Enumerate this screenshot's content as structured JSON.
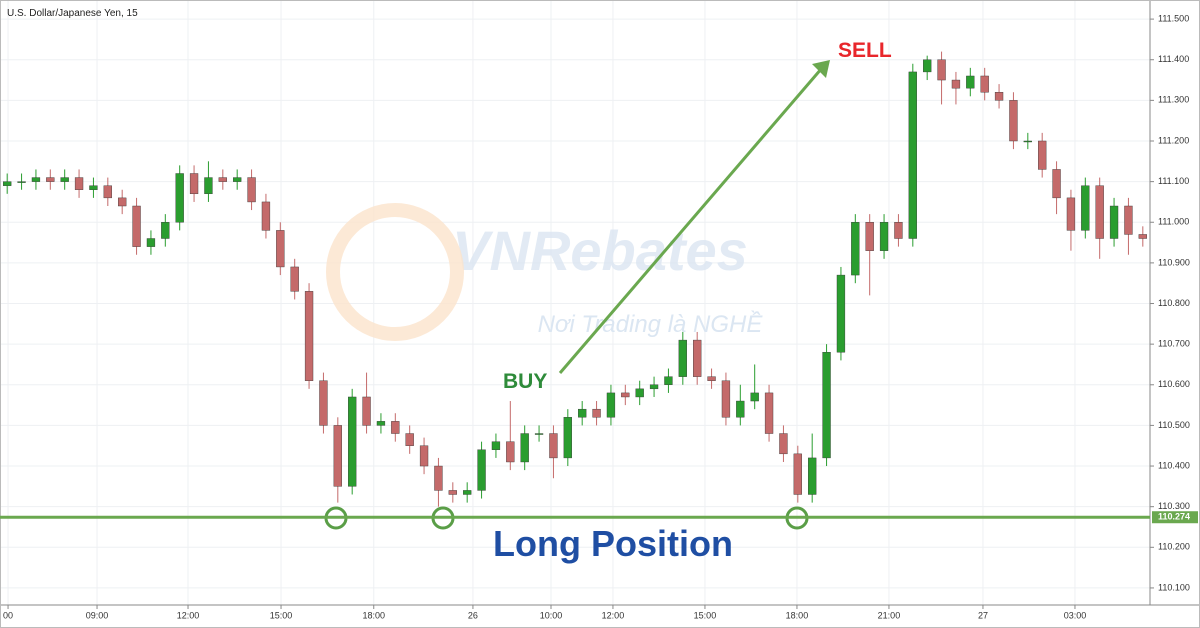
{
  "chart_data": {
    "type": "candlestick",
    "title": "U.S. Dollar/Japanese Yen, 15",
    "watermark": "VNRebates",
    "watermark_subtitle": "Nơi Trading là NGHỀ",
    "annotations": {
      "buy": "BUY",
      "sell": "SELL",
      "position": "Long Position"
    },
    "up_color": "#2a9d2f",
    "down_color": "#c46a6a",
    "grid": true,
    "xlim": [
      -0.5,
      79.5
    ],
    "xticks": [
      {
        "value": 0.06,
        "label": "00"
      },
      {
        "value": 6.25,
        "label": "09:00"
      },
      {
        "value": 12.58,
        "label": "12:00"
      },
      {
        "value": 19.05,
        "label": "15:00"
      },
      {
        "value": 25.5,
        "label": "18:00"
      },
      {
        "value": 32.4,
        "label": "26"
      },
      {
        "value": 37.83,
        "label": "10:00"
      },
      {
        "value": 42.14,
        "label": "12:00"
      },
      {
        "value": 48.54,
        "label": "15:00"
      },
      {
        "value": 54.94,
        "label": "18:00"
      },
      {
        "value": 61.34,
        "label": "21:00"
      },
      {
        "value": 67.88,
        "label": "27"
      },
      {
        "value": 74.28,
        "label": "03:00"
      }
    ],
    "ylim": [
      110.058,
      111.547
    ],
    "yticks": [
      {
        "value": 110.1,
        "label": "110.100"
      },
      {
        "value": 110.2,
        "label": "110.200"
      },
      {
        "value": 110.3,
        "label": "110.300"
      },
      {
        "value": 110.4,
        "label": "110.400"
      },
      {
        "value": 110.5,
        "label": "110.500"
      },
      {
        "value": 110.6,
        "label": "110.600"
      },
      {
        "value": 110.7,
        "label": "110.700"
      },
      {
        "value": 110.8,
        "label": "110.800"
      },
      {
        "value": 110.9,
        "label": "110.900"
      },
      {
        "value": 111.0,
        "label": "111.000"
      },
      {
        "value": 111.1,
        "label": "111.100"
      },
      {
        "value": 111.2,
        "label": "111.200"
      },
      {
        "value": 111.3,
        "label": "111.300"
      },
      {
        "value": 111.4,
        "label": "111.400"
      },
      {
        "value": 111.5,
        "label": "111.500"
      }
    ],
    "hline": {
      "value": 110.274,
      "label": "110.274",
      "color": "#6aa84f"
    },
    "open": [
      111.09,
      111.1,
      111.1,
      111.11,
      111.1,
      111.11,
      111.08,
      111.09,
      111.06,
      111.04,
      110.94,
      110.96,
      111.0,
      111.12,
      111.07,
      111.11,
      111.1,
      111.11,
      111.05,
      110.98,
      110.89,
      110.83,
      110.61,
      110.5,
      110.35,
      110.57,
      110.5,
      110.51,
      110.48,
      110.45,
      110.4,
      110.34,
      110.33,
      110.34,
      110.44,
      110.46,
      110.41,
      110.48,
      110.48,
      110.42,
      110.52,
      110.54,
      110.52,
      110.58,
      110.57,
      110.59,
      110.6,
      110.62,
      110.71,
      110.62,
      110.61,
      110.52,
      110.56,
      110.58,
      110.48,
      110.43,
      110.33,
      110.42,
      110.68,
      110.87,
      111.0,
      110.93,
      111.0,
      110.96,
      111.37,
      111.4,
      111.35,
      111.33,
      111.36,
      111.32,
      111.3,
      111.2,
      111.2,
      111.13,
      111.06,
      110.98,
      111.09,
      110.96,
      111.04,
      110.97
    ],
    "high": [
      111.12,
      111.12,
      111.13,
      111.13,
      111.13,
      111.13,
      111.11,
      111.11,
      111.08,
      111.06,
      110.98,
      111.02,
      111.14,
      111.14,
      111.15,
      111.13,
      111.13,
      111.13,
      111.07,
      111.0,
      110.91,
      110.85,
      110.63,
      110.52,
      110.59,
      110.63,
      110.53,
      110.53,
      110.5,
      110.47,
      110.42,
      110.36,
      110.36,
      110.46,
      110.48,
      110.56,
      110.5,
      110.5,
      110.5,
      110.54,
      110.56,
      110.56,
      110.6,
      110.6,
      110.61,
      110.62,
      110.64,
      110.73,
      110.73,
      110.64,
      110.63,
      110.6,
      110.65,
      110.6,
      110.5,
      110.45,
      110.48,
      110.7,
      110.89,
      111.02,
      111.02,
      111.02,
      111.02,
      111.39,
      111.41,
      111.42,
      111.37,
      111.38,
      111.38,
      111.34,
      111.32,
      111.22,
      111.22,
      111.15,
      111.08,
      111.11,
      111.11,
      111.06,
      111.06,
      110.99
    ],
    "low": [
      111.07,
      111.08,
      111.08,
      111.08,
      111.08,
      111.06,
      111.06,
      111.04,
      111.02,
      110.92,
      110.92,
      110.94,
      110.98,
      111.05,
      111.05,
      111.08,
      111.08,
      111.03,
      110.96,
      110.87,
      110.81,
      110.59,
      110.48,
      110.31,
      110.33,
      110.48,
      110.48,
      110.46,
      110.43,
      110.38,
      110.3,
      110.31,
      110.31,
      110.32,
      110.42,
      110.39,
      110.39,
      110.46,
      110.37,
      110.4,
      110.5,
      110.5,
      110.5,
      110.55,
      110.55,
      110.57,
      110.58,
      110.6,
      110.6,
      110.59,
      110.5,
      110.5,
      110.54,
      110.46,
      110.41,
      110.31,
      110.31,
      110.4,
      110.66,
      110.85,
      110.82,
      110.91,
      110.94,
      110.94,
      111.35,
      111.29,
      111.29,
      111.31,
      111.3,
      111.28,
      111.18,
      111.18,
      111.11,
      111.02,
      110.93,
      110.96,
      110.91,
      110.94,
      110.92,
      110.94
    ],
    "close": [
      111.1,
      111.1,
      111.11,
      111.1,
      111.11,
      111.08,
      111.09,
      111.06,
      111.04,
      110.94,
      110.96,
      111.0,
      111.12,
      111.07,
      111.11,
      111.1,
      111.11,
      111.05,
      110.98,
      110.89,
      110.83,
      110.61,
      110.5,
      110.35,
      110.57,
      110.5,
      110.51,
      110.48,
      110.45,
      110.4,
      110.34,
      110.33,
      110.34,
      110.44,
      110.46,
      110.41,
      110.48,
      110.48,
      110.42,
      110.52,
      110.54,
      110.52,
      110.58,
      110.57,
      110.59,
      110.6,
      110.62,
      110.71,
      110.62,
      110.61,
      110.52,
      110.56,
      110.58,
      110.48,
      110.43,
      110.33,
      110.42,
      110.68,
      110.87,
      111.0,
      110.93,
      111.0,
      110.96,
      111.37,
      111.4,
      111.35,
      111.33,
      111.36,
      111.32,
      111.3,
      111.2,
      111.2,
      111.13,
      111.06,
      110.98,
      111.09,
      110.96,
      111.04,
      110.97,
      110.96
    ]
  }
}
